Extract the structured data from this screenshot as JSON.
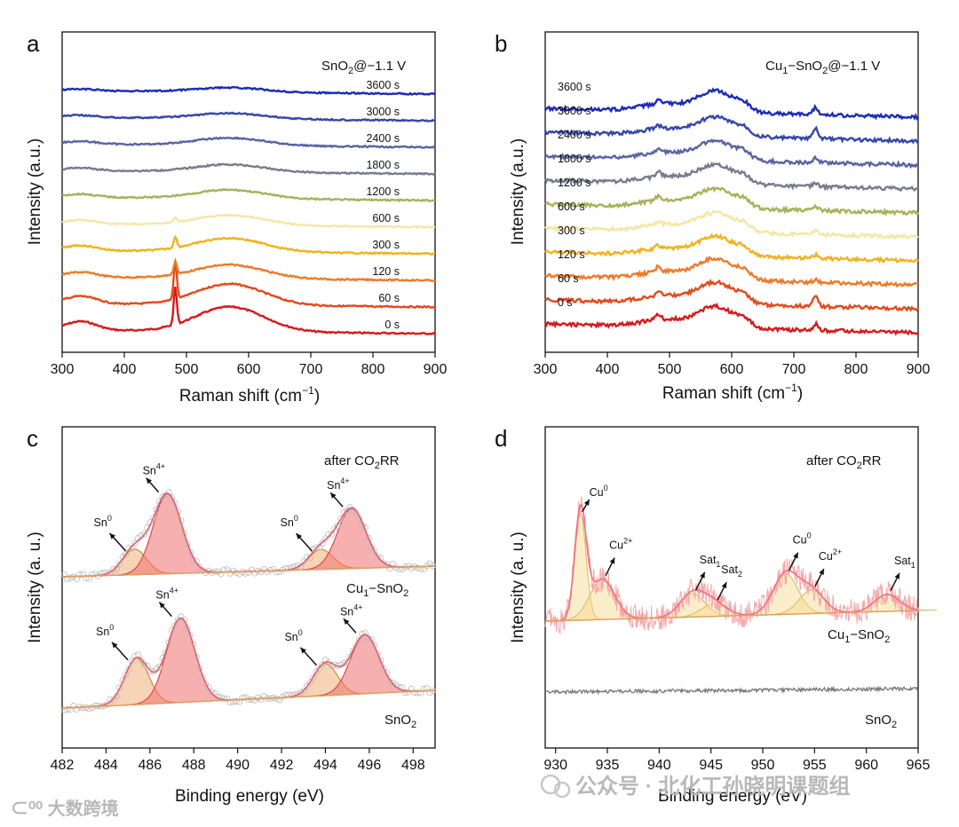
{
  "chart_data": [
    {
      "panel": "a",
      "type": "line",
      "title": "SnO2@−1.1 V",
      "xlabel": "Raman shift (cm−1)",
      "ylabel": "Intensity (a.u.)",
      "xlim": [
        300,
        900
      ],
      "xticks": [
        300,
        400,
        500,
        600,
        700,
        800,
        900
      ],
      "series": [
        {
          "name": "0 s",
          "color": "#d7191c",
          "offset": 0,
          "amp": 1.0,
          "sharp480": 1.0,
          "sharp735": 0
        },
        {
          "name": "60 s",
          "color": "#e34a1c",
          "offset": 1,
          "amp": 0.85,
          "sharp480": 1.0,
          "sharp735": 0
        },
        {
          "name": "120 s",
          "color": "#ee7a2a",
          "offset": 2,
          "amp": 0.55,
          "sharp480": 0.35,
          "sharp735": 0
        },
        {
          "name": "300 s",
          "color": "#f0b21e",
          "offset": 3,
          "amp": 0.55,
          "sharp480": 0.3,
          "sharp735": 0
        },
        {
          "name": "600 s",
          "color": "#f5e6a6",
          "offset": 4,
          "amp": 0.4,
          "sharp480": 0.12,
          "sharp735": 0
        },
        {
          "name": "1200 s",
          "color": "#a7b25a",
          "offset": 5,
          "amp": 0.35,
          "sharp480": 0,
          "sharp735": 0
        },
        {
          "name": "1800 s",
          "color": "#7a7a8e",
          "offset": 6,
          "amp": 0.3,
          "sharp480": 0,
          "sharp735": 0
        },
        {
          "name": "2400 s",
          "color": "#5a63a2",
          "offset": 7,
          "amp": 0.3,
          "sharp480": 0,
          "sharp735": 0
        },
        {
          "name": "3000 s",
          "color": "#3646a8",
          "offset": 8,
          "amp": 0.22,
          "sharp480": 0,
          "sharp735": 0
        },
        {
          "name": "3600 s",
          "color": "#1c2bb5",
          "offset": 9,
          "amp": 0.18,
          "sharp480": 0,
          "sharp735": 0
        }
      ]
    },
    {
      "panel": "b",
      "type": "line",
      "title": "Cu1−SnO2@−1.1 V",
      "xlabel": "Raman shift (cm−1)",
      "ylabel": "Intensity (a.u.)",
      "xlim": [
        300,
        900
      ],
      "xticks": [
        300,
        400,
        500,
        600,
        700,
        800,
        900
      ],
      "series": [
        {
          "name": "0 s",
          "color": "#d7191c",
          "offset": 0,
          "amp": 1.0,
          "sharp480": 0.5,
          "sharp735": 0.5
        },
        {
          "name": "60 s",
          "color": "#e34a1c",
          "offset": 1,
          "amp": 1.0,
          "sharp480": 0.3,
          "sharp735": 0.9
        },
        {
          "name": "120 s",
          "color": "#ee7a2a",
          "offset": 2,
          "amp": 1.0,
          "sharp480": 0.5,
          "sharp735": 0.2
        },
        {
          "name": "300 s",
          "color": "#f0b21e",
          "offset": 3,
          "amp": 0.9,
          "sharp480": 0.3,
          "sharp735": 0.3
        },
        {
          "name": "600 s",
          "color": "#f5e6a6",
          "offset": 4,
          "amp": 0.9,
          "sharp480": 0.3,
          "sharp735": 0.3
        },
        {
          "name": "1200 s",
          "color": "#a7b25a",
          "offset": 5,
          "amp": 0.9,
          "sharp480": 0.4,
          "sharp735": 0.3
        },
        {
          "name": "1800 s",
          "color": "#7a7a8e",
          "offset": 6,
          "amp": 0.9,
          "sharp480": 0.5,
          "sharp735": 0.3
        },
        {
          "name": "2400 s",
          "color": "#5a63a2",
          "offset": 7,
          "amp": 0.9,
          "sharp480": 0.3,
          "sharp735": 0.4
        },
        {
          "name": "3000 s",
          "color": "#3646a8",
          "offset": 8,
          "amp": 0.9,
          "sharp480": 0.3,
          "sharp735": 0.8
        },
        {
          "name": "3600 s",
          "color": "#1c2bb5",
          "offset": 9,
          "amp": 1.0,
          "sharp480": 0.3,
          "sharp735": 0.6
        }
      ]
    },
    {
      "panel": "c",
      "type": "line",
      "xlabel": "Binding energy (eV)",
      "ylabel": "Intensity (a. u.)",
      "xlim": [
        482,
        499
      ],
      "xticks": [
        482,
        484,
        486,
        488,
        490,
        492,
        494,
        496,
        498
      ],
      "spectra": [
        {
          "name": "after CO2RR",
          "label": "Cu1−SnO2",
          "peaks": [
            {
              "label": "Sn0",
              "center": 485.3,
              "height": 0.32
            },
            {
              "label": "Sn4+",
              "center": 486.8,
              "height": 1.0
            },
            {
              "label": "Sn0",
              "center": 493.8,
              "height": 0.25
            },
            {
              "label": "Sn4+",
              "center": 495.2,
              "height": 0.75
            }
          ]
        },
        {
          "name": "SnO2",
          "label": "SnO2",
          "peaks": [
            {
              "label": "Sn0",
              "center": 485.4,
              "height": 0.55
            },
            {
              "label": "Sn4+",
              "center": 487.4,
              "height": 1.0
            },
            {
              "label": "Sn0",
              "center": 494.0,
              "height": 0.38
            },
            {
              "label": "Sn4+",
              "center": 495.8,
              "height": 0.7
            }
          ]
        }
      ],
      "annotations": [
        "after CO2RR",
        "Cu1−SnO2",
        "SnO2"
      ]
    },
    {
      "panel": "d",
      "type": "line",
      "xlabel": "Binding energy (eV)",
      "ylabel": "Intensity (a. u.)",
      "xlim": [
        929,
        965
      ],
      "xticks": [
        930,
        935,
        940,
        945,
        950,
        955,
        960,
        965
      ],
      "spectra": [
        {
          "name": "after CO2RR",
          "label": "Cu1−SnO2",
          "peaks": [
            {
              "label": "Cu0",
              "center": 932.4,
              "height": 1.0
            },
            {
              "label": "Cu2+",
              "center": 934.5,
              "height": 0.38
            },
            {
              "label": "Sat1",
              "center": 943.2,
              "height": 0.22
            },
            {
              "label": "Sat2",
              "center": 945.3,
              "height": 0.12
            },
            {
              "label": "Cu0",
              "center": 952.2,
              "height": 0.38
            },
            {
              "label": "Cu2+",
              "center": 954.7,
              "height": 0.22
            },
            {
              "label": "Sat1",
              "center": 962.0,
              "height": 0.16
            }
          ]
        },
        {
          "name": "SnO2",
          "label": "SnO2",
          "peaks": []
        }
      ],
      "annotations": [
        "after CO2RR",
        "Cu1−SnO2",
        "SnO2"
      ]
    }
  ],
  "panel_letters": {
    "a": "a",
    "b": "b",
    "c": "c",
    "d": "d"
  },
  "panel_a": {
    "title_main": "SnO",
    "title_sub": "2",
    "title_rest": "@−1.1 V",
    "xlabel_main": "Raman shift (cm",
    "xlabel_sup": "−1",
    "xlabel_close": ")",
    "ylabel": "Intensity (a.u.)"
  },
  "panel_b": {
    "title_a": "Cu",
    "title_sub1": "1",
    "title_b": "−SnO",
    "title_sub2": "2",
    "title_c": "@−1.1 V",
    "xlabel_main": "Raman shift (cm",
    "xlabel_sup": "−1",
    "xlabel_close": ")",
    "ylabel": "Intensity (a.u.)"
  },
  "panel_c": {
    "top_a": "after CO",
    "top_sub": "2",
    "top_b": "RR",
    "mid_a": "Cu",
    "mid_sub1": "1",
    "mid_b": "−SnO",
    "mid_sub2": "2",
    "bot_a": "SnO",
    "bot_sub": "2",
    "xlabel": "Binding energy (eV)",
    "ylabel": "Intensity (a. u.)"
  },
  "panel_d": {
    "top_a": "after CO",
    "top_sub": "2",
    "top_b": "RR",
    "mid_a": "Cu",
    "mid_sub1": "1",
    "mid_b": "−SnO",
    "mid_sub2": "2",
    "bot_a": "SnO",
    "bot_sub": "2",
    "xlabel": "Binding energy (eV)",
    "ylabel": "Intensity (a. u.)"
  },
  "peak_labels": {
    "sn": "Sn",
    "sn0": "0",
    "sn4": "4+",
    "cu": "Cu",
    "cu0": "0",
    "cu2": "2+",
    "sat": "Sat",
    "sat1": "1",
    "sat2": "2"
  },
  "watermark": {
    "wechat": "公众号 · 北化工孙晓明课题组",
    "logo": "大数跨境"
  },
  "colors": {
    "red": "#d7191c",
    "fillRed": "#f07070",
    "fillOrange": "#f0b07a",
    "fillYellow": "#f5d98a",
    "base": "#e0a060",
    "pink": "#f4a8a8",
    "gray": "#777777"
  }
}
